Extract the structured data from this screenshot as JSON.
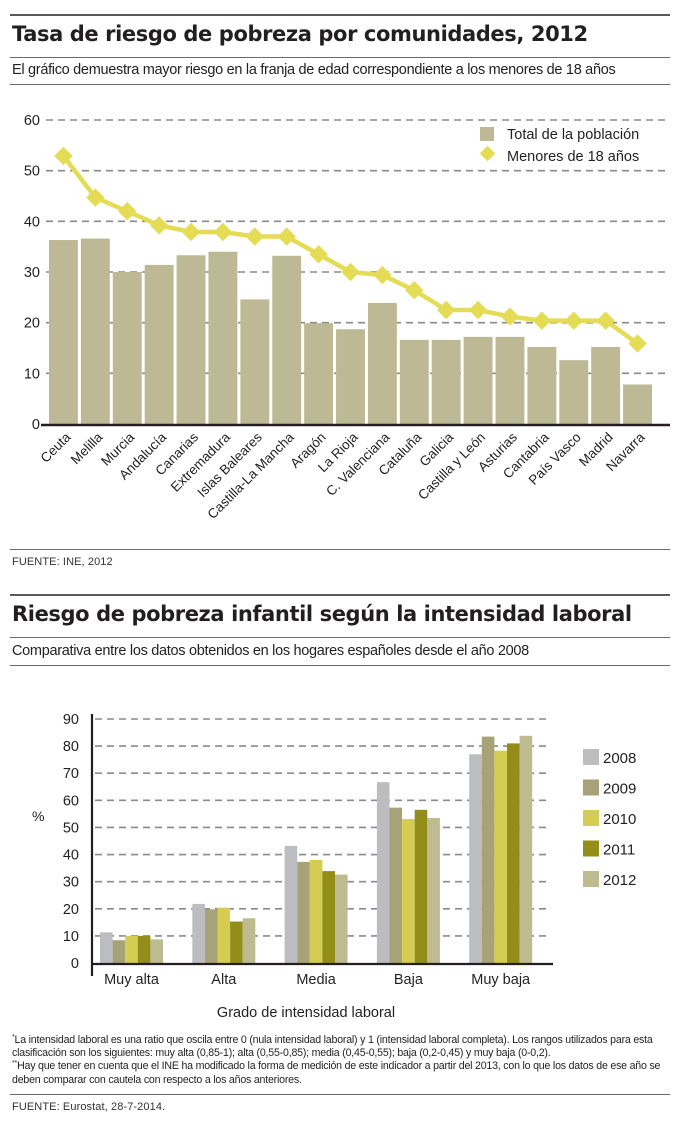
{
  "chart_data": [
    {
      "type": "bar",
      "title": "Tasa de riesgo de pobreza por comunidades, 2012",
      "subtitle": "El gráfico demuestra mayor riesgo en la franja de edad correspondiente a los menores de 18 años",
      "xlabel": "",
      "ylabel": "",
      "ylim": [
        0,
        60
      ],
      "yticks": [
        0,
        10,
        20,
        30,
        40,
        50,
        60
      ],
      "grid": true,
      "legend_position": "top-right",
      "categories": [
        "Ceuta",
        "Melilla",
        "Murcia",
        "Andalucía",
        "Canarias",
        "Extremadura",
        "Islas Baleares",
        "Castilla-La Mancha",
        "Aragón",
        "La Rioja",
        "C. Valenciana",
        "Cataluña",
        "Galicia",
        "Castilla y León",
        "Asturias",
        "Cantabria",
        "País Vasco",
        "Madrid",
        "Navarra"
      ],
      "series": [
        {
          "name": "Total de la población",
          "type": "bar",
          "color": "#bcb994",
          "values": [
            36.3,
            36.6,
            30.0,
            31.4,
            33.3,
            34.0,
            24.6,
            33.2,
            19.9,
            18.7,
            23.9,
            16.6,
            16.6,
            17.2,
            17.2,
            15.2,
            12.6,
            15.2,
            7.8
          ]
        },
        {
          "name": "Menores de 18 años",
          "type": "line",
          "marker": "diamond",
          "color": "#e5dc55",
          "values": [
            52.9,
            44.7,
            42.0,
            39.2,
            37.9,
            37.9,
            37.0,
            37.0,
            33.5,
            30.0,
            29.4,
            26.4,
            22.5,
            22.5,
            21.2,
            20.4,
            20.4,
            20.4,
            15.9
          ]
        }
      ],
      "source": "FUENTE: INE, 2012"
    },
    {
      "type": "bar",
      "title": "Riesgo de pobreza infantil según la intensidad laboral",
      "subtitle": "Comparativa entre los datos obtenidos en los hogares españoles desde el año 2008",
      "xlabel": "Grado de intensidad laboral",
      "ylabel": "%",
      "ylim": [
        0,
        90
      ],
      "yticks": [
        0,
        10,
        20,
        30,
        40,
        50,
        60,
        70,
        80,
        90
      ],
      "grid": true,
      "legend_position": "right",
      "categories": [
        "Muy alta",
        "Alta",
        "Media",
        "Baja",
        "Muy baja"
      ],
      "series": [
        {
          "name": "2008",
          "color": "#bcbdc1",
          "values": [
            11.3,
            21.8,
            43.2,
            66.7,
            77.0
          ]
        },
        {
          "name": "2009",
          "color": "#a7a277",
          "values": [
            8.4,
            19.8,
            37.3,
            57.3,
            83.5
          ]
        },
        {
          "name": "2010",
          "color": "#d5cc52",
          "values": [
            10.0,
            20.4,
            38.0,
            53.1,
            78.3
          ]
        },
        {
          "name": "2011",
          "color": "#938d1a",
          "values": [
            10.0,
            15.3,
            33.9,
            56.5,
            81.0
          ]
        },
        {
          "name": "2012",
          "color": "#bebb91",
          "values": [
            8.7,
            16.5,
            32.6,
            53.5,
            83.8
          ]
        }
      ],
      "notes": [
        {
          "marker": "*",
          "text": "La intensidad laboral es una ratio que oscila entre 0 (nula intensidad laboral) y 1 (intensidad laboral completa). Los rangos utilizados para esta clasificación son los siguientes: muy alta (0,85-1); alta (0,55-0,85); media (0,45-0,55); baja (0,2-0,45) y muy baja (0-0,2)."
        },
        {
          "marker": "**",
          "text": "Hay que tener en cuenta que el INE ha modificado la forma de medición de este indicador a partir del 2013, con lo que los datos de ese año se deben comparar con cautela con respecto a los años anteriores."
        }
      ],
      "source": "FUENTE: Eurostat, 28-7-2014."
    }
  ]
}
